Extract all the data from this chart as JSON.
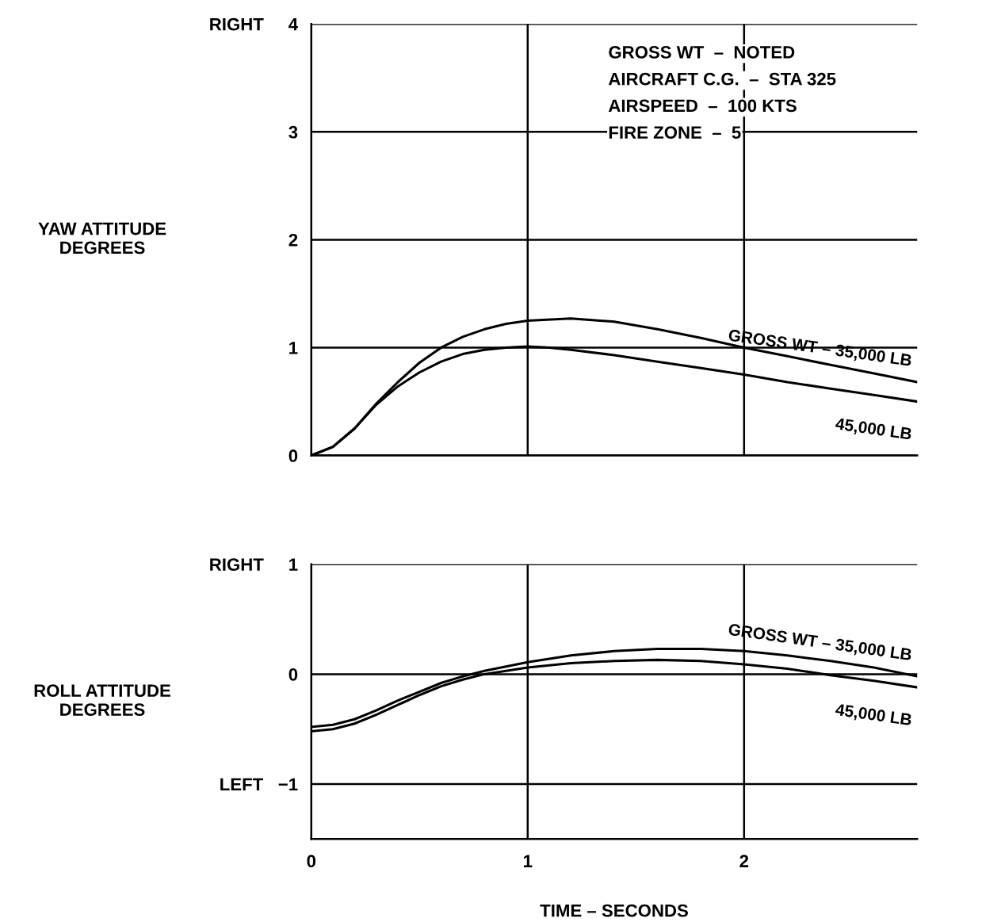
{
  "chart_data": [
    {
      "type": "line",
      "ylabel": "YAW ATTITUDE\nDEGREES",
      "xlim": [
        0,
        2.8
      ],
      "xticks": [
        0,
        1,
        2
      ],
      "ylim": [
        0,
        4
      ],
      "yticks": [
        0,
        1,
        2,
        3,
        {
          "value": 4,
          "label": "RIGHT     4"
        }
      ],
      "grid": true,
      "tick_labels": "y",
      "line_style": "solid",
      "annotations": [
        "GROSS WT  –  NOTED",
        "AIRCRAFT C.G.  –  STA 325",
        "AIRSPEED  –  100 KTS",
        "FIRE ZONE  –  5"
      ],
      "series": [
        {
          "name": "GROSS WT – 35,000 LB",
          "color": "#000000",
          "x": [
            0,
            0.1,
            0.2,
            0.3,
            0.4,
            0.5,
            0.6,
            0.7,
            0.8,
            0.9,
            1.0,
            1.2,
            1.4,
            1.6,
            1.8,
            2.0,
            2.2,
            2.4,
            2.6,
            2.8
          ],
          "values": [
            0,
            0.08,
            0.25,
            0.48,
            0.68,
            0.86,
            1.0,
            1.1,
            1.17,
            1.22,
            1.25,
            1.27,
            1.24,
            1.17,
            1.09,
            1.0,
            0.92,
            0.84,
            0.76,
            0.68
          ]
        },
        {
          "name": "45,000 LB",
          "color": "#000000",
          "x": [
            0,
            0.1,
            0.2,
            0.3,
            0.4,
            0.5,
            0.6,
            0.7,
            0.8,
            0.9,
            1.0,
            1.1,
            1.2,
            1.4,
            1.6,
            1.8,
            2.0,
            2.2,
            2.4,
            2.6,
            2.8
          ],
          "values": [
            0,
            0.08,
            0.25,
            0.47,
            0.64,
            0.77,
            0.87,
            0.94,
            0.98,
            1.0,
            1.01,
            1.0,
            0.98,
            0.93,
            0.87,
            0.81,
            0.75,
            0.68,
            0.62,
            0.56,
            0.5
          ]
        }
      ]
    },
    {
      "type": "line",
      "ylabel": "ROLL ATTITUDE\nDEGREES",
      "xlabel": "TIME – SECONDS",
      "xlim": [
        0,
        2.8
      ],
      "xticks": [
        0,
        1,
        2
      ],
      "ylim": [
        -1.5,
        1
      ],
      "yticks": [
        {
          "value": -1,
          "label": "LEFT   −1"
        },
        0,
        {
          "value": 1,
          "label": "RIGHT     1"
        }
      ],
      "grid": true,
      "line_style": "solid",
      "series": [
        {
          "name": "GROSS WT – 35,000 LB",
          "color": "#000000",
          "x": [
            0,
            0.1,
            0.2,
            0.3,
            0.4,
            0.5,
            0.6,
            0.7,
            0.8,
            0.9,
            1.0,
            1.2,
            1.4,
            1.6,
            1.8,
            2.0,
            2.2,
            2.4,
            2.6,
            2.8
          ],
          "values": [
            -0.48,
            -0.46,
            -0.41,
            -0.33,
            -0.24,
            -0.16,
            -0.08,
            -0.02,
            0.03,
            0.07,
            0.11,
            0.17,
            0.21,
            0.23,
            0.23,
            0.21,
            0.17,
            0.12,
            0.06,
            -0.02
          ]
        },
        {
          "name": "45,000 LB",
          "color": "#000000",
          "x": [
            0,
            0.1,
            0.2,
            0.3,
            0.4,
            0.5,
            0.6,
            0.7,
            0.8,
            0.9,
            1.0,
            1.2,
            1.4,
            1.6,
            1.8,
            2.0,
            2.2,
            2.4,
            2.6,
            2.8
          ],
          "values": [
            -0.52,
            -0.5,
            -0.45,
            -0.37,
            -0.28,
            -0.19,
            -0.11,
            -0.05,
            0.0,
            0.03,
            0.06,
            0.1,
            0.12,
            0.13,
            0.12,
            0.09,
            0.05,
            -0.01,
            -0.06,
            -0.12
          ]
        }
      ]
    }
  ]
}
